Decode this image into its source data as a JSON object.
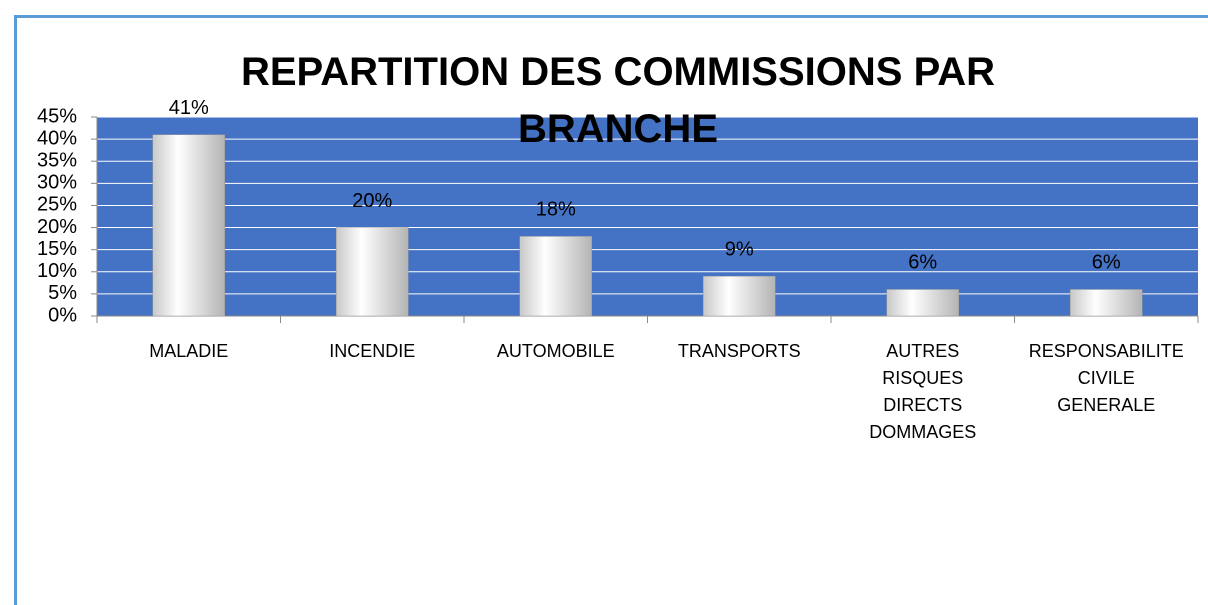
{
  "chart_data": {
    "type": "bar",
    "title": "REPARTITION DES COMMISSIONS PAR BRANCHE",
    "categories": [
      "MALADIE",
      "INCENDIE",
      "AUTOMOBILE",
      "TRANSPORTS",
      "AUTRES RISQUES DIRECTS DOMMAGES",
      "RESPONSABILITE CIVILE GENERALE"
    ],
    "values": [
      41,
      20,
      18,
      9,
      6,
      6
    ],
    "value_labels": [
      "41%",
      "20%",
      "18%",
      "9%",
      "6%",
      "6%"
    ],
    "color": "#e6e6e6",
    "ylim": [
      0,
      45
    ],
    "yticks": [
      {
        "value": 0,
        "label": "0%"
      },
      {
        "value": 5,
        "label": "5%"
      },
      {
        "value": 10,
        "label": "10%"
      },
      {
        "value": 15,
        "label": "15%"
      },
      {
        "value": 20,
        "label": "20%"
      },
      {
        "value": 25,
        "label": "25%"
      },
      {
        "value": 30,
        "label": "30%"
      },
      {
        "value": 35,
        "label": "35%"
      },
      {
        "value": 40,
        "label": "40%"
      },
      {
        "value": 45,
        "label": "45%"
      }
    ],
    "grid": true
  }
}
